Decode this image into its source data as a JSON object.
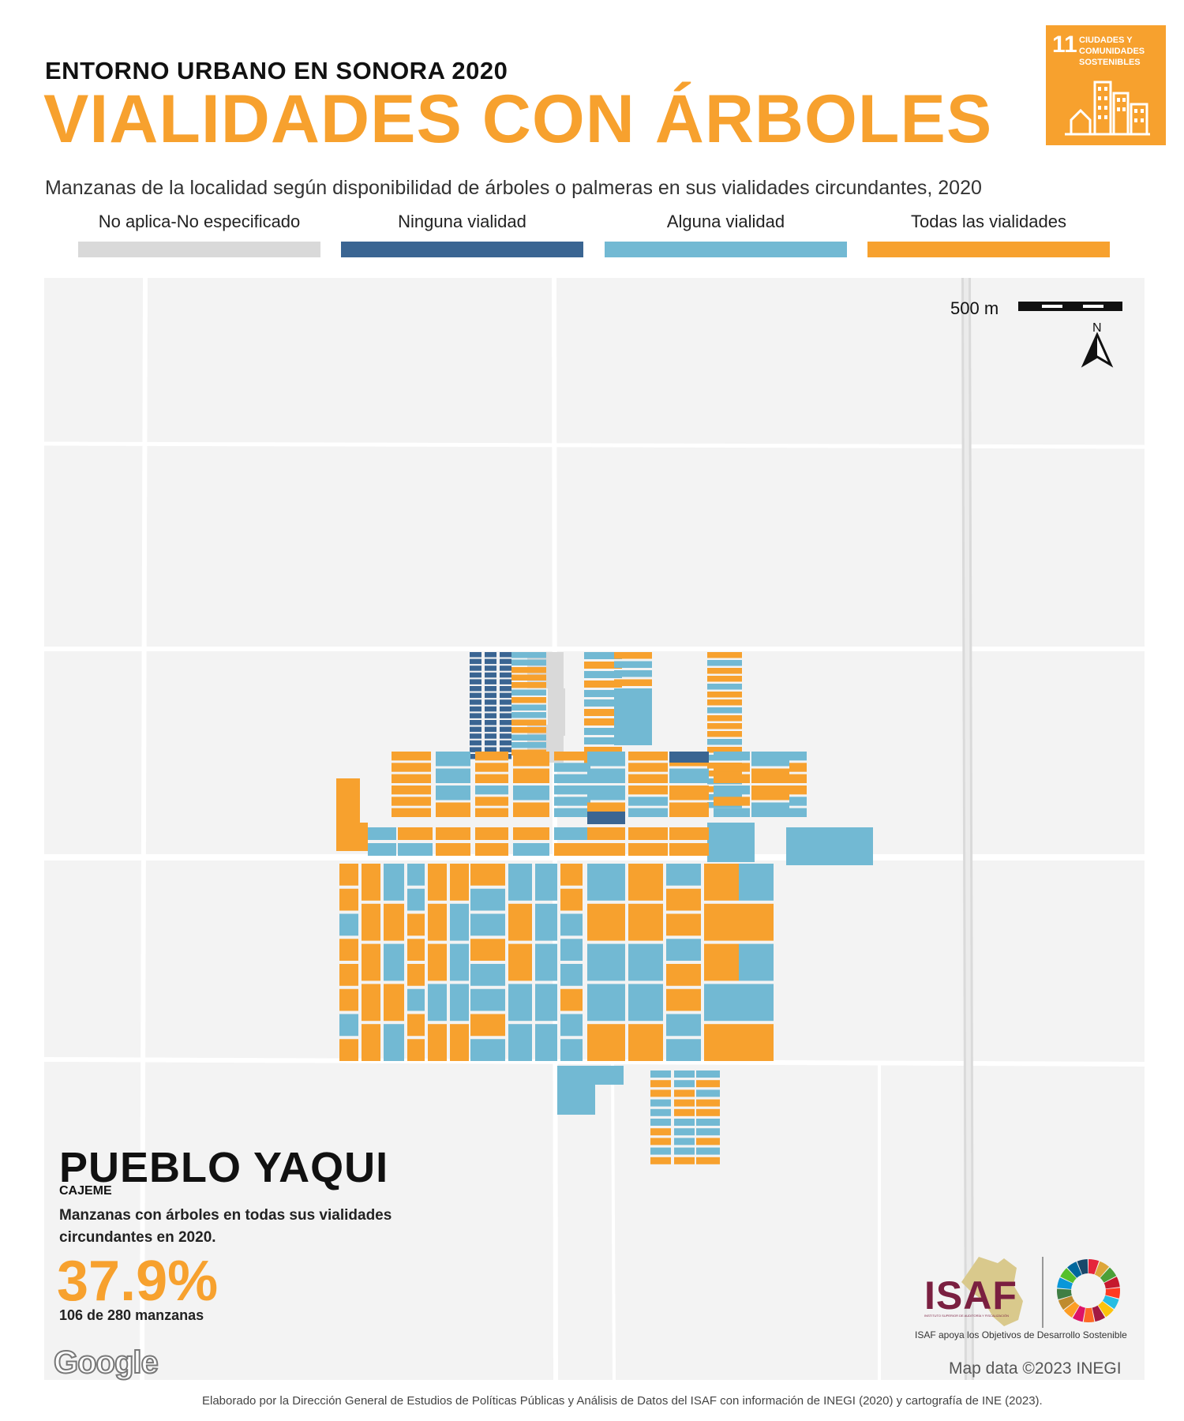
{
  "header": {
    "kicker": "ENTORNO URBANO EN SONORA 2020",
    "title": "VIALIDADES CON ÁRBOLES",
    "subtitle": "Manzanas de la localidad según disponibilidad de árboles o palmeras en sus vialidades circundantes, 2020"
  },
  "sdg_badge": {
    "number": "11",
    "text": "CIUDADES Y COMUNIDADES SOSTENIBLES",
    "color": "#f7a12e"
  },
  "legend": [
    {
      "label": "No aplica-No especificado",
      "color": "#d9d9d9"
    },
    {
      "label": "Ninguna vialidad",
      "color": "#3a6592"
    },
    {
      "label": "Alguna vialidad",
      "color": "#72b9d3"
    },
    {
      "label": "Todas las vialidades",
      "color": "#f7a12e"
    }
  ],
  "map": {
    "scale_label": "500 m",
    "north_label": "N",
    "attribution": "Map data ©2023 INEGI",
    "provider_logo": "Google"
  },
  "locality": {
    "name": "PUEBLO YAQUI",
    "municipality": "CAJEME",
    "description": "Manzanas con árboles en todas sus vialidades circundantes en 2020.",
    "percentage": "37.9%",
    "count_text": "106 de 280 manzanas"
  },
  "isaf": {
    "logo_text": "ISAF",
    "logo_small": "INSTITUTO SUPERIOR DE AUDITORÍA Y FISCALIZACIÓN",
    "slogan": "ISAF apoya los Objetivos de Desarrollo Sostenible"
  },
  "footer": "Elaborado por la Dirección General de Estudios de Políticas Públicas y Análisis de Datos del ISAF con información de INEGI (2020) y cartografía de INE (2023)."
}
